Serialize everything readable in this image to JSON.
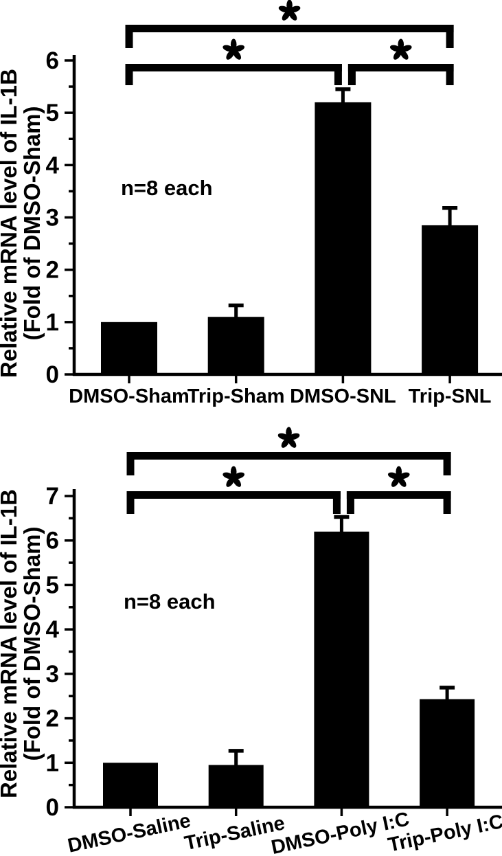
{
  "figure": {
    "background": "#ffffff",
    "ink": "#000000",
    "bar_color": "#000000"
  },
  "chart_data": [
    {
      "id": "top-panel",
      "type": "bar",
      "title": "",
      "ylabel": "Relative mRNA level of IL-1B",
      "ylabel_line2": "(Fold of DMSO-Sham)",
      "xlabel": "",
      "annotation": "n=8 each",
      "categories": [
        "DMSO-Sham",
        "Trip-Sham",
        "DMSO-SNL",
        "Trip-SNL"
      ],
      "values": [
        1.0,
        1.1,
        5.2,
        2.85
      ],
      "errors": [
        0,
        0.22,
        0.25,
        0.33
      ],
      "ylim": [
        0,
        6
      ],
      "ytick_step": 1,
      "minor_tick_step": 0.5,
      "grid": "off",
      "legend": "none",
      "bar_color": "#000000",
      "significance": [
        {
          "from": 0,
          "to": 3,
          "symbol": "*"
        },
        {
          "from": 0,
          "to": 2,
          "symbol": "*"
        },
        {
          "from": 2,
          "to": 3,
          "symbol": "*"
        }
      ]
    },
    {
      "id": "bottom-panel",
      "type": "bar",
      "title": "",
      "ylabel": "Relative mRNA level of IL-1B",
      "ylabel_line2": "(Fold of DMSO-Sham)",
      "xlabel": "",
      "annotation": "n=8 each",
      "categories": [
        "DMSO-Saline",
        "Trip-Saline",
        "DMSO-Poly I:C",
        "Trip-Poly I:C"
      ],
      "values": [
        1.0,
        0.95,
        6.2,
        2.43
      ],
      "errors": [
        0,
        0.32,
        0.33,
        0.26
      ],
      "ylim": [
        0,
        7
      ],
      "ytick_step": 1,
      "minor_tick_step": 0.5,
      "grid": "off",
      "legend": "none",
      "bar_color": "#000000",
      "significance": [
        {
          "from": 0,
          "to": 3,
          "symbol": "*"
        },
        {
          "from": 0,
          "to": 2,
          "symbol": "*"
        },
        {
          "from": 2,
          "to": 3,
          "symbol": "*"
        }
      ]
    }
  ]
}
